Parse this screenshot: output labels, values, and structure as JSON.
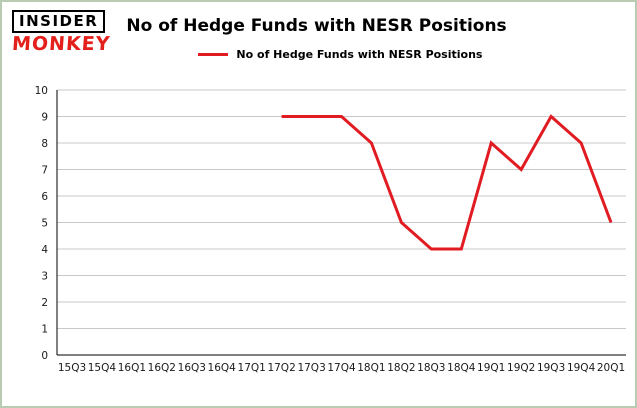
{
  "brand": {
    "line1": "INSIDER",
    "line2": "MONKEY",
    "color": "#e3201b"
  },
  "header": {
    "title": "No of Hedge Funds with NESR Positions"
  },
  "legend": {
    "label": "No of Hedge Funds with NESR Positions",
    "color": "#e11b22"
  },
  "chart_data": {
    "type": "line",
    "title": "No of Hedge Funds with NESR Positions",
    "categories": [
      "15Q3",
      "15Q4",
      "16Q1",
      "16Q2",
      "16Q3",
      "16Q4",
      "17Q1",
      "17Q2",
      "17Q3",
      "17Q4",
      "18Q1",
      "18Q2",
      "18Q3",
      "18Q4",
      "19Q1",
      "19Q2",
      "19Q3",
      "19Q4",
      "20Q1"
    ],
    "series": [
      {
        "name": "No of Hedge Funds with NESR Positions",
        "color": "#e11b22",
        "values": [
          null,
          null,
          null,
          null,
          null,
          null,
          null,
          9,
          9,
          9,
          8,
          5,
          4,
          4,
          8,
          7,
          9,
          8,
          5
        ]
      }
    ],
    "ylim": [
      0,
      10
    ],
    "ytick_step": 1,
    "grid": true,
    "grid_color": "#c9c9c9",
    "axis_color": "#000000",
    "legend_position": "top"
  }
}
